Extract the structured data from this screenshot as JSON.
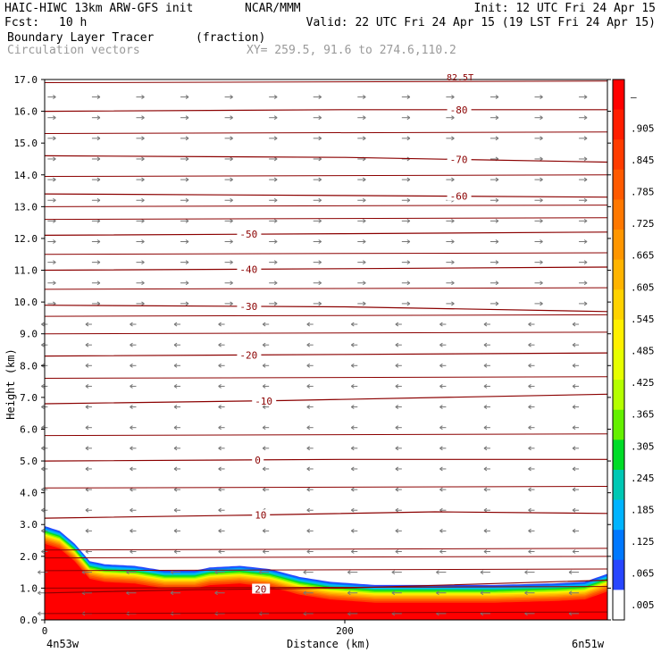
{
  "header": {
    "model": "HAIC-HIWC 13km ARW-GFS init",
    "org": "NCAR/MMM",
    "init": "Init: 12 UTC Fri 24 Apr 15",
    "fcst_label": "Fcst:",
    "fcst_value": "10 h",
    "valid": "Valid: 22 UTC Fri 24 Apr 15 (19 LST Fri 24 Apr 15)",
    "field": "Boundary Layer Tracer",
    "field_units": "(fraction)",
    "overlay": "Circulation vectors",
    "xy": "XY= 259.5, 91.6 to 274.6,110.2",
    "top_label": "82.5T"
  },
  "chart_data": {
    "type": "heatmap",
    "title": "Boundary Layer Tracer",
    "ylabel": "Height (km)",
    "xlabel": "Distance (km)",
    "xlim": [
      0,
      375
    ],
    "ylim": [
      0,
      17
    ],
    "y_ticks": [
      "0.0",
      "1.0",
      "2.0",
      "3.0",
      "4.0",
      "5.0",
      "6.0",
      "7.0",
      "8.0",
      "9.0",
      "10.0",
      "11.0",
      "12.0",
      "13.0",
      "14.0",
      "15.0",
      "16.0",
      "17.0"
    ],
    "x_ticks": [
      {
        "x": 0,
        "label": "0"
      },
      {
        "x": 200,
        "label": "200"
      }
    ],
    "x_endpoints": {
      "left": "4n53w",
      "right": "6n51w"
    },
    "colorbar": {
      "labels": [
        "–",
        ".905",
        ".845",
        ".785",
        ".725",
        ".665",
        ".605",
        ".545",
        ".485",
        ".425",
        ".365",
        ".305",
        ".245",
        ".185",
        ".125",
        ".065",
        ".005"
      ],
      "colors": [
        "#ff0000",
        "#ff1e00",
        "#ff3c00",
        "#ff5a00",
        "#ff7800",
        "#ff9600",
        "#ffb400",
        "#ffd200",
        "#fff000",
        "#e6ff00",
        "#b4ff00",
        "#64f000",
        "#00dc28",
        "#00c8b4",
        "#00b4ff",
        "#0078ff",
        "#2846ff",
        "#ffffff"
      ]
    },
    "tracer_top_km": [
      [
        0,
        2.95
      ],
      [
        10,
        2.8
      ],
      [
        20,
        2.4
      ],
      [
        30,
        1.85
      ],
      [
        40,
        1.75
      ],
      [
        60,
        1.7
      ],
      [
        80,
        1.55
      ],
      [
        100,
        1.55
      ],
      [
        110,
        1.65
      ],
      [
        130,
        1.7
      ],
      [
        150,
        1.6
      ],
      [
        170,
        1.35
      ],
      [
        190,
        1.2
      ],
      [
        220,
        1.1
      ],
      [
        260,
        1.1
      ],
      [
        300,
        1.1
      ],
      [
        340,
        1.15
      ],
      [
        360,
        1.2
      ],
      [
        375,
        1.45
      ]
    ],
    "temperature_contours": [
      {
        "label": "20",
        "values": [
          [
            0,
            0.85
          ],
          [
            100,
            0.95
          ],
          [
            200,
            1.0
          ],
          [
            375,
            1.25
          ]
        ]
      },
      {
        "label": "10",
        "values": [
          [
            0,
            3.2
          ],
          [
            140,
            3.3
          ],
          [
            260,
            3.4
          ],
          [
            375,
            3.35
          ]
        ]
      },
      {
        "label": "0",
        "values": [
          [
            0,
            5.0
          ],
          [
            200,
            5.05
          ],
          [
            375,
            5.05
          ]
        ]
      },
      {
        "label": "-10",
        "values": [
          [
            0,
            6.8
          ],
          [
            160,
            6.9
          ],
          [
            375,
            7.1
          ]
        ]
      },
      {
        "label": "-20",
        "values": [
          [
            0,
            8.3
          ],
          [
            200,
            8.35
          ],
          [
            375,
            8.4
          ]
        ]
      },
      {
        "label": "-30",
        "values": [
          [
            0,
            9.9
          ],
          [
            200,
            9.85
          ],
          [
            375,
            9.7
          ]
        ]
      },
      {
        "label": "-40",
        "values": [
          [
            0,
            11.0
          ],
          [
            200,
            11.05
          ],
          [
            375,
            11.1
          ]
        ]
      },
      {
        "label": "-50",
        "values": [
          [
            0,
            12.1
          ],
          [
            200,
            12.15
          ],
          [
            375,
            12.2
          ]
        ]
      },
      {
        "label": "-60",
        "values": [
          [
            0,
            13.4
          ],
          [
            200,
            13.35
          ],
          [
            375,
            13.3
          ]
        ]
      },
      {
        "label": "-70",
        "values": [
          [
            0,
            14.6
          ],
          [
            200,
            14.55
          ],
          [
            375,
            14.4
          ]
        ]
      },
      {
        "label": "-80",
        "values": [
          [
            0,
            16.0
          ],
          [
            200,
            16.05
          ],
          [
            375,
            16.05
          ]
        ]
      }
    ],
    "unlabeled_contours_km": [
      0.2,
      1.0,
      1.55,
      1.95,
      2.2,
      4.15,
      5.8,
      7.6,
      9.0,
      9.55,
      10.4,
      11.5,
      12.6,
      13.0,
      13.95,
      15.3,
      16.9
    ]
  }
}
